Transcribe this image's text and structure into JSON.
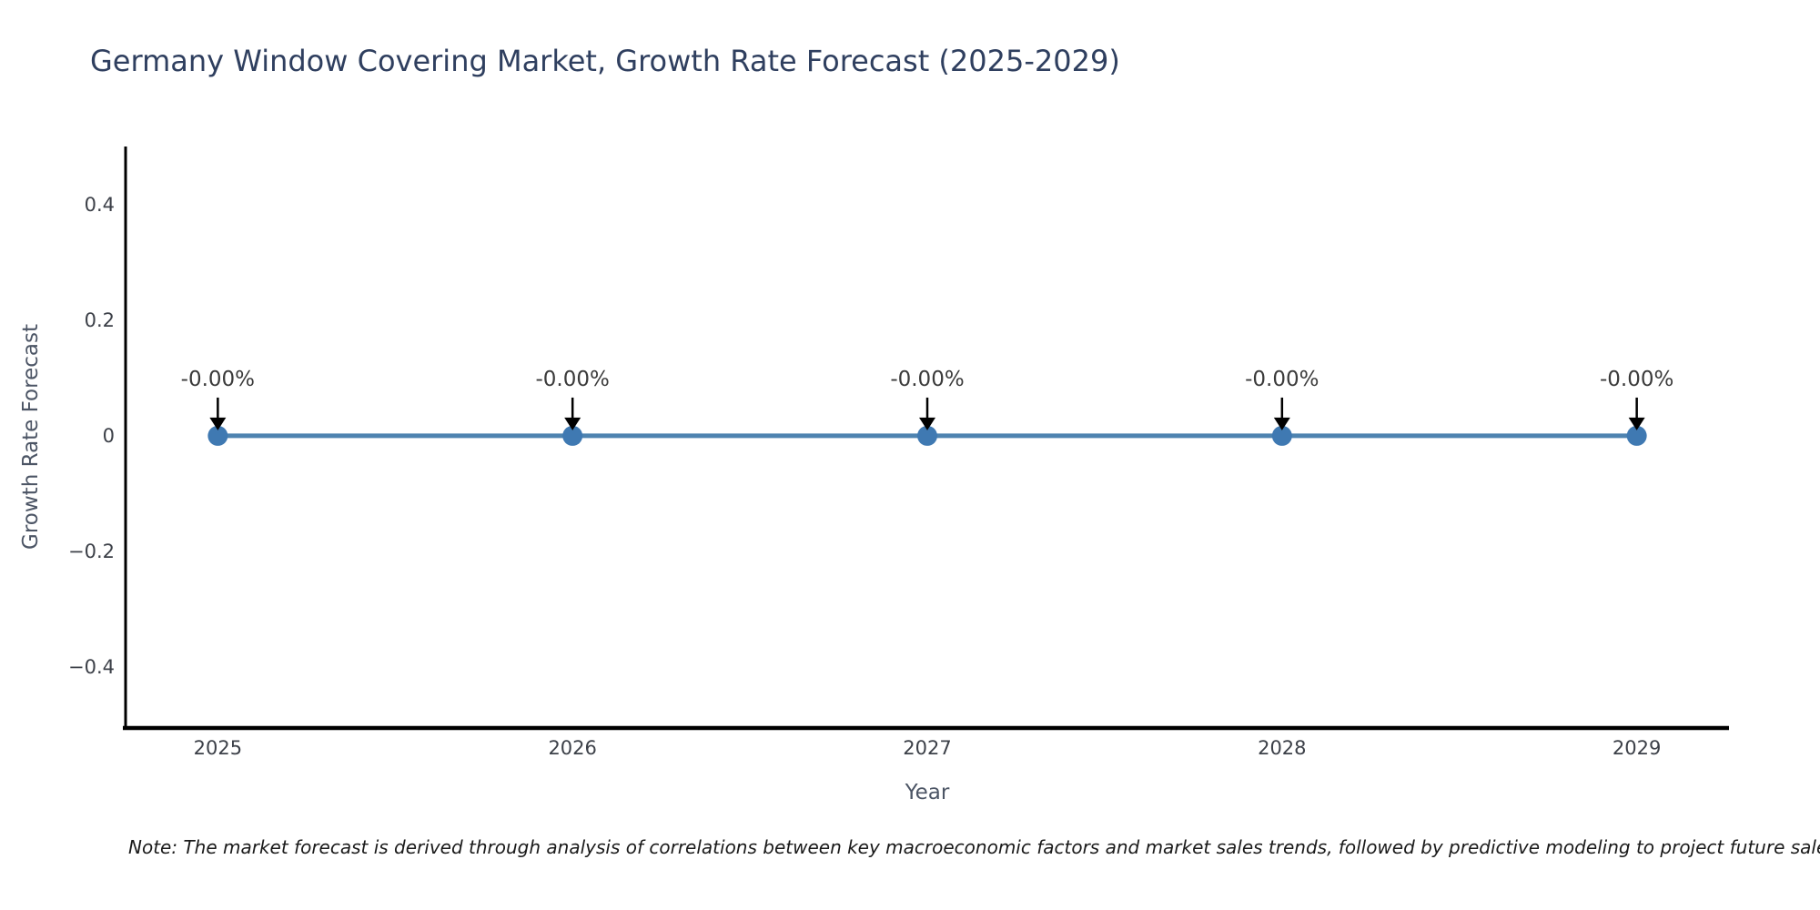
{
  "title": "Germany Window Covering Market, Growth Rate Forecast (2025-2029)",
  "note": "Note: The market forecast is derived through analysis of correlations between key macroeconomic factors and market sales trends, followed by predictive modeling to project future sales.",
  "chart_data": {
    "type": "line",
    "title": "Germany Window Covering Market, Growth Rate Forecast (2025-2029)",
    "xlabel": "Year",
    "ylabel": "Growth Rate Forecast",
    "x": [
      2025,
      2026,
      2027,
      2028,
      2029
    ],
    "values": [
      0,
      0,
      0,
      0,
      0
    ],
    "point_labels": [
      "-0.00%",
      "-0.00%",
      "-0.00%",
      "-0.00%",
      "-0.00%"
    ],
    "x_tick_labels": [
      "2025",
      "2026",
      "2027",
      "2028",
      "2029"
    ],
    "y_ticks": [
      0.4,
      0.2,
      0,
      -0.2,
      -0.4
    ],
    "y_tick_labels": [
      "0.4",
      "0.2",
      "0",
      "−0.2",
      "−0.4"
    ],
    "xlim": [
      2024.74,
      2029.26
    ],
    "ylim": [
      -0.505,
      0.5
    ],
    "grid": false,
    "legend": null,
    "colors": {
      "line": "#4e83b0",
      "marker": "#3f79b2",
      "arrow": "#000000",
      "spine": "#000000",
      "title": "#2f3f5f",
      "tick": "#3c4048",
      "axis_label": "#4c5565",
      "note": "#1a1a1a"
    }
  }
}
